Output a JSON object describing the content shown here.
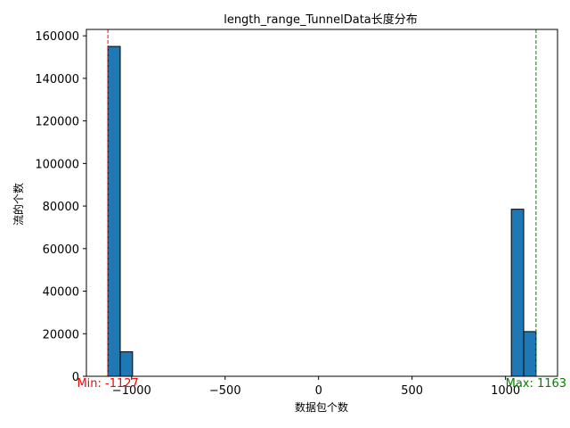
{
  "chart_data": {
    "type": "bar",
    "title": "length_range_TunnelData长度分布",
    "xlabel": "数据包个数",
    "ylabel": "流的个数",
    "xlim": [
      -1242,
      1278
    ],
    "ylim": [
      0,
      163000
    ],
    "xticks": [
      -1000,
      -500,
      0,
      500,
      1000
    ],
    "xtick_labels": [
      "−1000",
      "−500",
      "0",
      "500",
      "1000"
    ],
    "yticks": [
      0,
      20000,
      40000,
      60000,
      80000,
      100000,
      120000,
      140000,
      160000
    ],
    "ytick_labels": [
      "0",
      "20000",
      "40000",
      "60000",
      "80000",
      "100000",
      "120000",
      "140000",
      "160000"
    ],
    "bin_width": 66,
    "bins": [
      {
        "start": -1127,
        "end": -1061,
        "value": 155000
      },
      {
        "start": -1061,
        "end": -995,
        "value": 11500
      },
      {
        "start": 1031,
        "end": 1097,
        "value": 78500
      },
      {
        "start": 1097,
        "end": 1163,
        "value": 21000
      }
    ],
    "bar_color": "#1f77b4",
    "grid": false,
    "legend": "none",
    "annotations": [
      {
        "text": "Min: -1127",
        "x": -1127,
        "color": "#ff0000"
      },
      {
        "text": "Max: 1163",
        "x": 1163,
        "color": "#008000"
      }
    ]
  }
}
